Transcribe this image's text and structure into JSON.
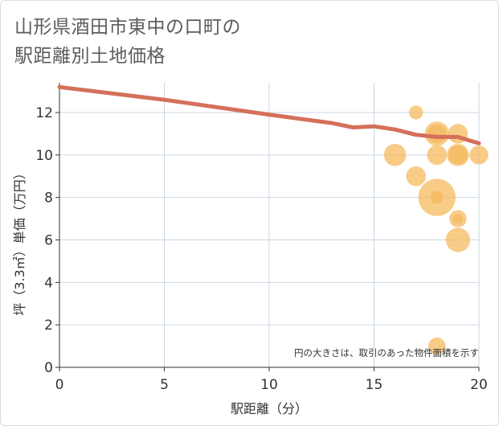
{
  "title_line1": "山形県酒田市東中の口町の",
  "title_line2": "駅距離別土地価格",
  "chart_data": {
    "type": "scatter",
    "xlabel": "駅距離（分）",
    "ylabel": "坪（3.3㎡）単価（万円）",
    "xlim": [
      0,
      20
    ],
    "ylim": [
      0,
      13.4
    ],
    "xticks": [
      0,
      5,
      10,
      15,
      20
    ],
    "yticks": [
      0,
      2,
      4,
      6,
      8,
      10,
      12
    ],
    "grid": true,
    "note": "円の大きさは、取引のあった物件面積を示す",
    "colors": {
      "line": "#d4705a",
      "bubble": "#f5b95f",
      "grid": "#c9d6e3",
      "text": "#333333"
    },
    "trend_line": {
      "x": [
        0,
        5,
        10,
        13,
        14,
        15,
        16,
        17,
        18,
        19,
        20
      ],
      "y": [
        13.2,
        12.6,
        11.9,
        11.5,
        11.3,
        11.35,
        11.2,
        10.95,
        10.85,
        10.85,
        10.55
      ]
    },
    "bubbles": [
      {
        "x": 17,
        "y": 12,
        "size": 1
      },
      {
        "x": 18,
        "y": 11,
        "size": 3
      },
      {
        "x": 18,
        "y": 11,
        "size": 2
      },
      {
        "x": 19,
        "y": 11,
        "size": 2
      },
      {
        "x": 16,
        "y": 10,
        "size": 2.5
      },
      {
        "x": 18,
        "y": 10,
        "size": 2
      },
      {
        "x": 19,
        "y": 10,
        "size": 2.5
      },
      {
        "x": 19,
        "y": 10,
        "size": 2
      },
      {
        "x": 20,
        "y": 10,
        "size": 1.8
      },
      {
        "x": 17,
        "y": 9,
        "size": 2
      },
      {
        "x": 18,
        "y": 8,
        "size": 7
      },
      {
        "x": 18,
        "y": 8,
        "size": 1
      },
      {
        "x": 19,
        "y": 7,
        "size": 1.5
      },
      {
        "x": 19,
        "y": 7,
        "size": 0.6
      },
      {
        "x": 19,
        "y": 6,
        "size": 3
      },
      {
        "x": 18,
        "y": 1,
        "size": 1.5
      }
    ]
  }
}
